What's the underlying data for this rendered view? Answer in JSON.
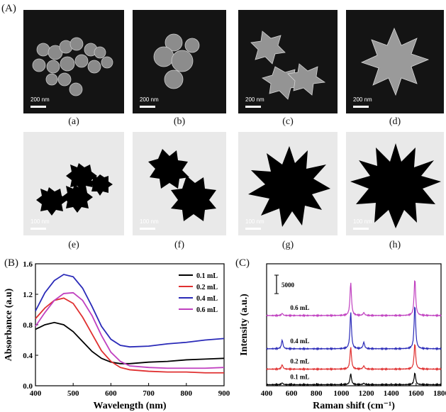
{
  "figure": {
    "panel_A_label": "(A)",
    "panel_B_label": "(B)",
    "panel_C_label": "(C)",
    "sem_images": [
      {
        "label": "(a)",
        "scale": "200 nm"
      },
      {
        "label": "(b)",
        "scale": "200 nm"
      },
      {
        "label": "(c)",
        "scale": "200 nm"
      },
      {
        "label": "(d)",
        "scale": "200 nm"
      }
    ],
    "tem_images": [
      {
        "label": "(e)",
        "scale": "100 nm"
      },
      {
        "label": "(f)",
        "scale": "100 nm"
      },
      {
        "label": "(g)",
        "scale": "100 nm"
      },
      {
        "label": "(h)",
        "scale": "100 nm"
      }
    ]
  },
  "chart_data": [
    {
      "type": "line",
      "xlabel": "Wavelength (nm)",
      "ylabel": "Absorbance (a.u)",
      "xlim": [
        400,
        900
      ],
      "ylim": [
        0,
        1.6
      ],
      "xticks": [
        "400",
        "500",
        "600",
        "700",
        "800",
        "900"
      ],
      "yticks": [
        "0.0",
        "0.4",
        "0.8",
        "1.2",
        "1.6"
      ],
      "legend_position": "top-right",
      "x": [
        400,
        425,
        450,
        475,
        500,
        525,
        550,
        575,
        600,
        625,
        650,
        700,
        750,
        800,
        850,
        900
      ],
      "series": [
        {
          "name": "0.1 mL",
          "color": "#000000",
          "values": [
            0.74,
            0.8,
            0.83,
            0.8,
            0.71,
            0.58,
            0.45,
            0.36,
            0.31,
            0.29,
            0.29,
            0.31,
            0.32,
            0.34,
            0.35,
            0.36
          ]
        },
        {
          "name": "0.2 mL",
          "color": "#e03030",
          "values": [
            0.88,
            1.02,
            1.12,
            1.15,
            1.08,
            0.9,
            0.68,
            0.46,
            0.32,
            0.24,
            0.21,
            0.19,
            0.18,
            0.18,
            0.17,
            0.17
          ]
        },
        {
          "name": "0.4 mL",
          "color": "#2a2ab8",
          "values": [
            0.98,
            1.22,
            1.38,
            1.46,
            1.43,
            1.28,
            1.04,
            0.78,
            0.61,
            0.53,
            0.51,
            0.52,
            0.55,
            0.57,
            0.6,
            0.62
          ]
        },
        {
          "name": "0.6 mL",
          "color": "#c040c0",
          "values": [
            0.78,
            0.96,
            1.12,
            1.21,
            1.22,
            1.12,
            0.92,
            0.66,
            0.44,
            0.32,
            0.26,
            0.24,
            0.23,
            0.23,
            0.23,
            0.24
          ]
        }
      ]
    },
    {
      "type": "line",
      "xlabel": "Raman shift (cm⁻¹)",
      "ylabel": "Intensity (a.u.)",
      "xlim": [
        400,
        1800
      ],
      "xticks": [
        "400",
        "600",
        "800",
        "1000",
        "1200",
        "1400",
        "1600",
        "1800"
      ],
      "scale_bar_label": "5000",
      "scale_bar_value": 5000,
      "series": [
        {
          "name": "0.1 mL",
          "color": "#000000",
          "baseline": 300,
          "peaks": [
            {
              "x": 1075,
              "h": 3000
            },
            {
              "x": 1590,
              "h": 3200
            },
            {
              "x": 525,
              "h": 500
            },
            {
              "x": 1180,
              "h": 400
            }
          ]
        },
        {
          "name": "0.2 mL",
          "color": "#e03030",
          "baseline": 4500,
          "peaks": [
            {
              "x": 1075,
              "h": 6000
            },
            {
              "x": 1590,
              "h": 7000
            },
            {
              "x": 525,
              "h": 1200
            },
            {
              "x": 1180,
              "h": 900
            }
          ]
        },
        {
          "name": "0.4 mL",
          "color": "#2a2ab8",
          "baseline": 10000,
          "peaks": [
            {
              "x": 1075,
              "h": 10000
            },
            {
              "x": 1590,
              "h": 12000
            },
            {
              "x": 525,
              "h": 2400
            },
            {
              "x": 1180,
              "h": 1800
            }
          ]
        },
        {
          "name": "0.6 mL",
          "color": "#c040c0",
          "baseline": 19000,
          "peaks": [
            {
              "x": 1075,
              "h": 9000
            },
            {
              "x": 1590,
              "h": 10000
            },
            {
              "x": 525,
              "h": 600
            },
            {
              "x": 1180,
              "h": 800
            }
          ]
        }
      ]
    }
  ]
}
